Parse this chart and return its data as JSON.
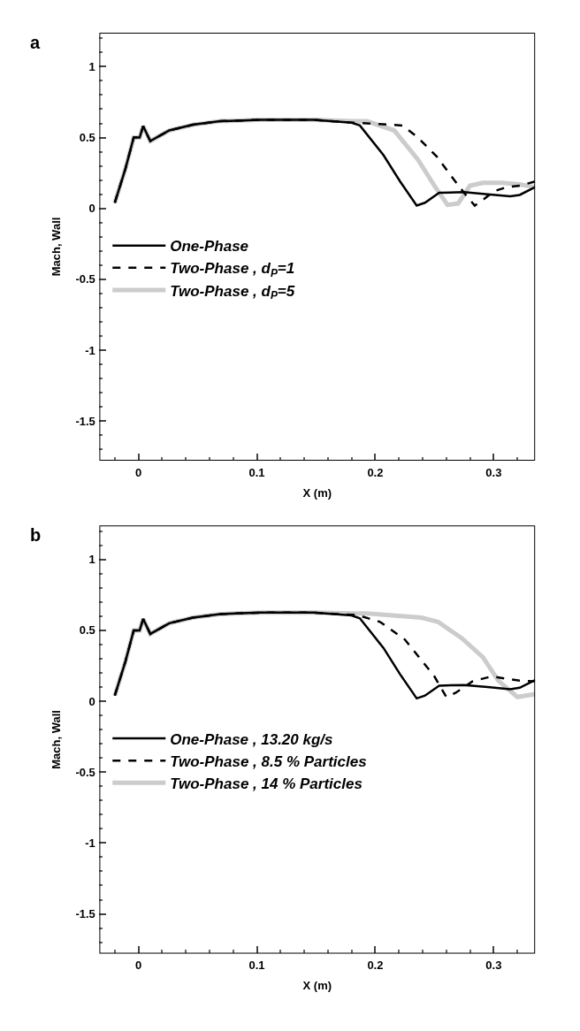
{
  "chart_data": [
    {
      "type": "line",
      "annotations": [
        "a"
      ],
      "xlabel": "X (m)",
      "ylabel": "Mach, Wall",
      "xlim": [
        -0.033,
        0.335
      ],
      "ylim": [
        -1.78,
        1.24
      ],
      "xticks": [
        0,
        0.1,
        0.2,
        0.3
      ],
      "yticks": [
        -1.5,
        -1,
        -0.5,
        0,
        0.5,
        1
      ],
      "legend": "left",
      "marker": "none",
      "series": [
        {
          "name": "One-Phase",
          "color": "#000000",
          "line_style": "solid",
          "x": [
            -0.02,
            -0.011,
            -0.004,
            0.001,
            0.004,
            0.01,
            0.026,
            0.046,
            0.069,
            0.103,
            0.148,
            0.18,
            0.187,
            0.207,
            0.221,
            0.235,
            0.242,
            0.254,
            0.275,
            0.295,
            0.314,
            0.322,
            0.335
          ],
          "values": [
            0.04,
            0.28,
            0.5,
            0.5,
            0.58,
            0.475,
            0.55,
            0.59,
            0.615,
            0.625,
            0.625,
            0.605,
            0.585,
            0.375,
            0.19,
            0.02,
            0.04,
            0.11,
            0.115,
            0.1,
            0.085,
            0.095,
            0.15
          ]
        },
        {
          "name": "Two-Phase , d$_{P}$=1",
          "color": "#000000",
          "line_style": "dashed",
          "x": [
            -0.02,
            -0.011,
            -0.004,
            0.001,
            0.004,
            0.01,
            0.026,
            0.046,
            0.069,
            0.103,
            0.148,
            0.18,
            0.184,
            0.223,
            0.236,
            0.252,
            0.264,
            0.275,
            0.284,
            0.291,
            0.3,
            0.311,
            0.322,
            0.335
          ],
          "values": [
            0.04,
            0.28,
            0.5,
            0.5,
            0.58,
            0.475,
            0.55,
            0.59,
            0.615,
            0.625,
            0.625,
            0.605,
            0.605,
            0.585,
            0.5,
            0.365,
            0.23,
            0.11,
            0.02,
            0.06,
            0.12,
            0.15,
            0.16,
            0.19
          ]
        },
        {
          "name": "Two-Phase , d$_{P}$=5",
          "color": "#cccccc",
          "line_style": "solid",
          "x": [
            -0.02,
            -0.011,
            -0.004,
            0.001,
            0.004,
            0.01,
            0.026,
            0.046,
            0.069,
            0.103,
            0.148,
            0.18,
            0.193,
            0.216,
            0.236,
            0.25,
            0.261,
            0.27,
            0.28,
            0.291,
            0.307,
            0.322,
            0.335
          ],
          "values": [
            0.04,
            0.28,
            0.5,
            0.5,
            0.58,
            0.475,
            0.55,
            0.59,
            0.615,
            0.625,
            0.625,
            0.615,
            0.615,
            0.55,
            0.345,
            0.16,
            0.025,
            0.035,
            0.16,
            0.18,
            0.18,
            0.17,
            0.15
          ]
        }
      ]
    },
    {
      "type": "line",
      "annotations": [
        "b"
      ],
      "xlabel": "X (m)",
      "ylabel": "Mach, Wall",
      "xlim": [
        -0.033,
        0.335
      ],
      "ylim": [
        -1.78,
        1.24
      ],
      "xticks": [
        0,
        0.1,
        0.2,
        0.3
      ],
      "yticks": [
        -1.5,
        -1,
        -0.5,
        0,
        0.5,
        1
      ],
      "legend": "left",
      "marker": "none",
      "series": [
        {
          "name": "One-Phase , 13.20 kg/s",
          "color": "#000000",
          "line_style": "solid",
          "x": [
            -0.02,
            -0.011,
            -0.004,
            0.001,
            0.004,
            0.01,
            0.026,
            0.046,
            0.069,
            0.103,
            0.148,
            0.18,
            0.187,
            0.207,
            0.221,
            0.235,
            0.242,
            0.254,
            0.275,
            0.295,
            0.314,
            0.322,
            0.335
          ],
          "values": [
            0.04,
            0.28,
            0.5,
            0.5,
            0.58,
            0.475,
            0.55,
            0.59,
            0.615,
            0.625,
            0.625,
            0.605,
            0.585,
            0.375,
            0.19,
            0.02,
            0.04,
            0.11,
            0.115,
            0.1,
            0.085,
            0.095,
            0.15
          ]
        },
        {
          "name": "Two-Phase , 8.5 % Particles",
          "color": "#000000",
          "line_style": "dashed",
          "x": [
            -0.02,
            -0.011,
            -0.004,
            0.001,
            0.004,
            0.01,
            0.026,
            0.046,
            0.069,
            0.103,
            0.148,
            0.18,
            0.184,
            0.204,
            0.225,
            0.25,
            0.26,
            0.268,
            0.282,
            0.298,
            0.322,
            0.335
          ],
          "values": [
            0.04,
            0.28,
            0.5,
            0.5,
            0.58,
            0.475,
            0.55,
            0.59,
            0.615,
            0.625,
            0.625,
            0.61,
            0.61,
            0.56,
            0.435,
            0.175,
            0.03,
            0.06,
            0.14,
            0.175,
            0.145,
            0.14
          ]
        },
        {
          "name": "Two-Phase , 14 % Particles",
          "color": "#cccccc",
          "line_style": "solid",
          "x": [
            -0.02,
            -0.011,
            -0.004,
            0.001,
            0.004,
            0.01,
            0.026,
            0.046,
            0.069,
            0.103,
            0.148,
            0.18,
            0.193,
            0.239,
            0.253,
            0.273,
            0.291,
            0.304,
            0.32,
            0.335
          ],
          "values": [
            0.04,
            0.28,
            0.5,
            0.5,
            0.58,
            0.475,
            0.55,
            0.59,
            0.615,
            0.625,
            0.625,
            0.62,
            0.62,
            0.59,
            0.56,
            0.445,
            0.31,
            0.145,
            0.03,
            0.05
          ]
        }
      ]
    }
  ]
}
